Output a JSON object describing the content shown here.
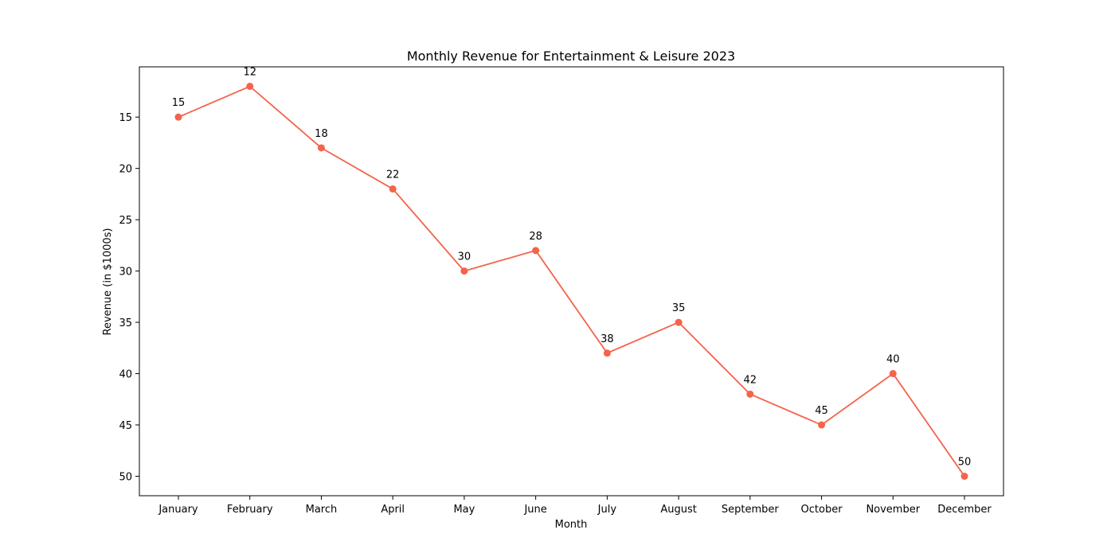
{
  "chart_data": {
    "type": "line",
    "title": "Monthly Revenue for Entertainment & Leisure 2023",
    "xlabel": "Month",
    "ylabel": "Revenue (in $1000s)",
    "categories": [
      "January",
      "February",
      "March",
      "April",
      "May",
      "June",
      "July",
      "August",
      "September",
      "October",
      "November",
      "December"
    ],
    "values": [
      15,
      12,
      18,
      22,
      30,
      28,
      38,
      35,
      42,
      45,
      40,
      50
    ],
    "ylim": [
      10.1,
      51.9
    ],
    "y_inverted": true,
    "y_ticks": [
      15,
      20,
      25,
      30,
      35,
      40,
      45,
      50
    ],
    "grid": false,
    "data_labels": true,
    "colors": {
      "line": "#f4634a",
      "marker": "#f4634a"
    }
  }
}
